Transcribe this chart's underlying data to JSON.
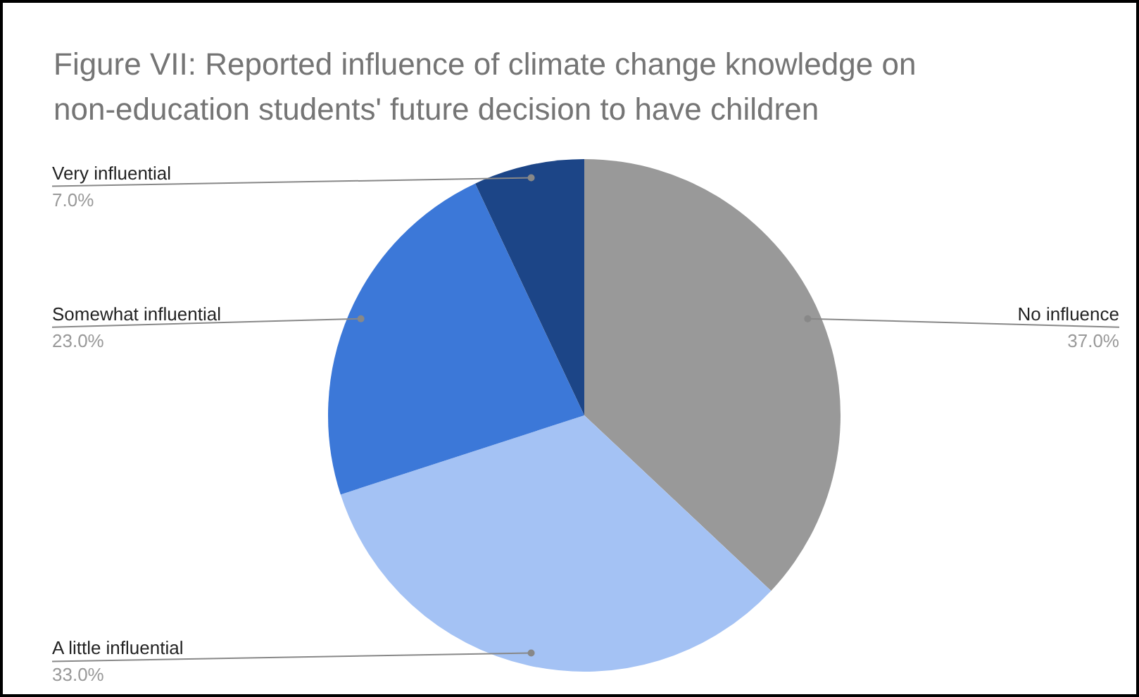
{
  "chart_data": {
    "type": "pie",
    "title": "Figure VII: Reported influence of climate change knowledge on non-education students' future decision to have children",
    "categories": [
      "No influence",
      "A little influential",
      "Somewhat influential",
      "Very influential"
    ],
    "values": [
      37,
      33,
      23,
      7
    ],
    "colors": [
      "#999999",
      "#a4c2f4",
      "#3c78d8",
      "#1c4587"
    ],
    "value_labels": [
      "37.0%",
      "33.0%",
      "23.0%",
      "7.0%"
    ],
    "legend": false
  }
}
